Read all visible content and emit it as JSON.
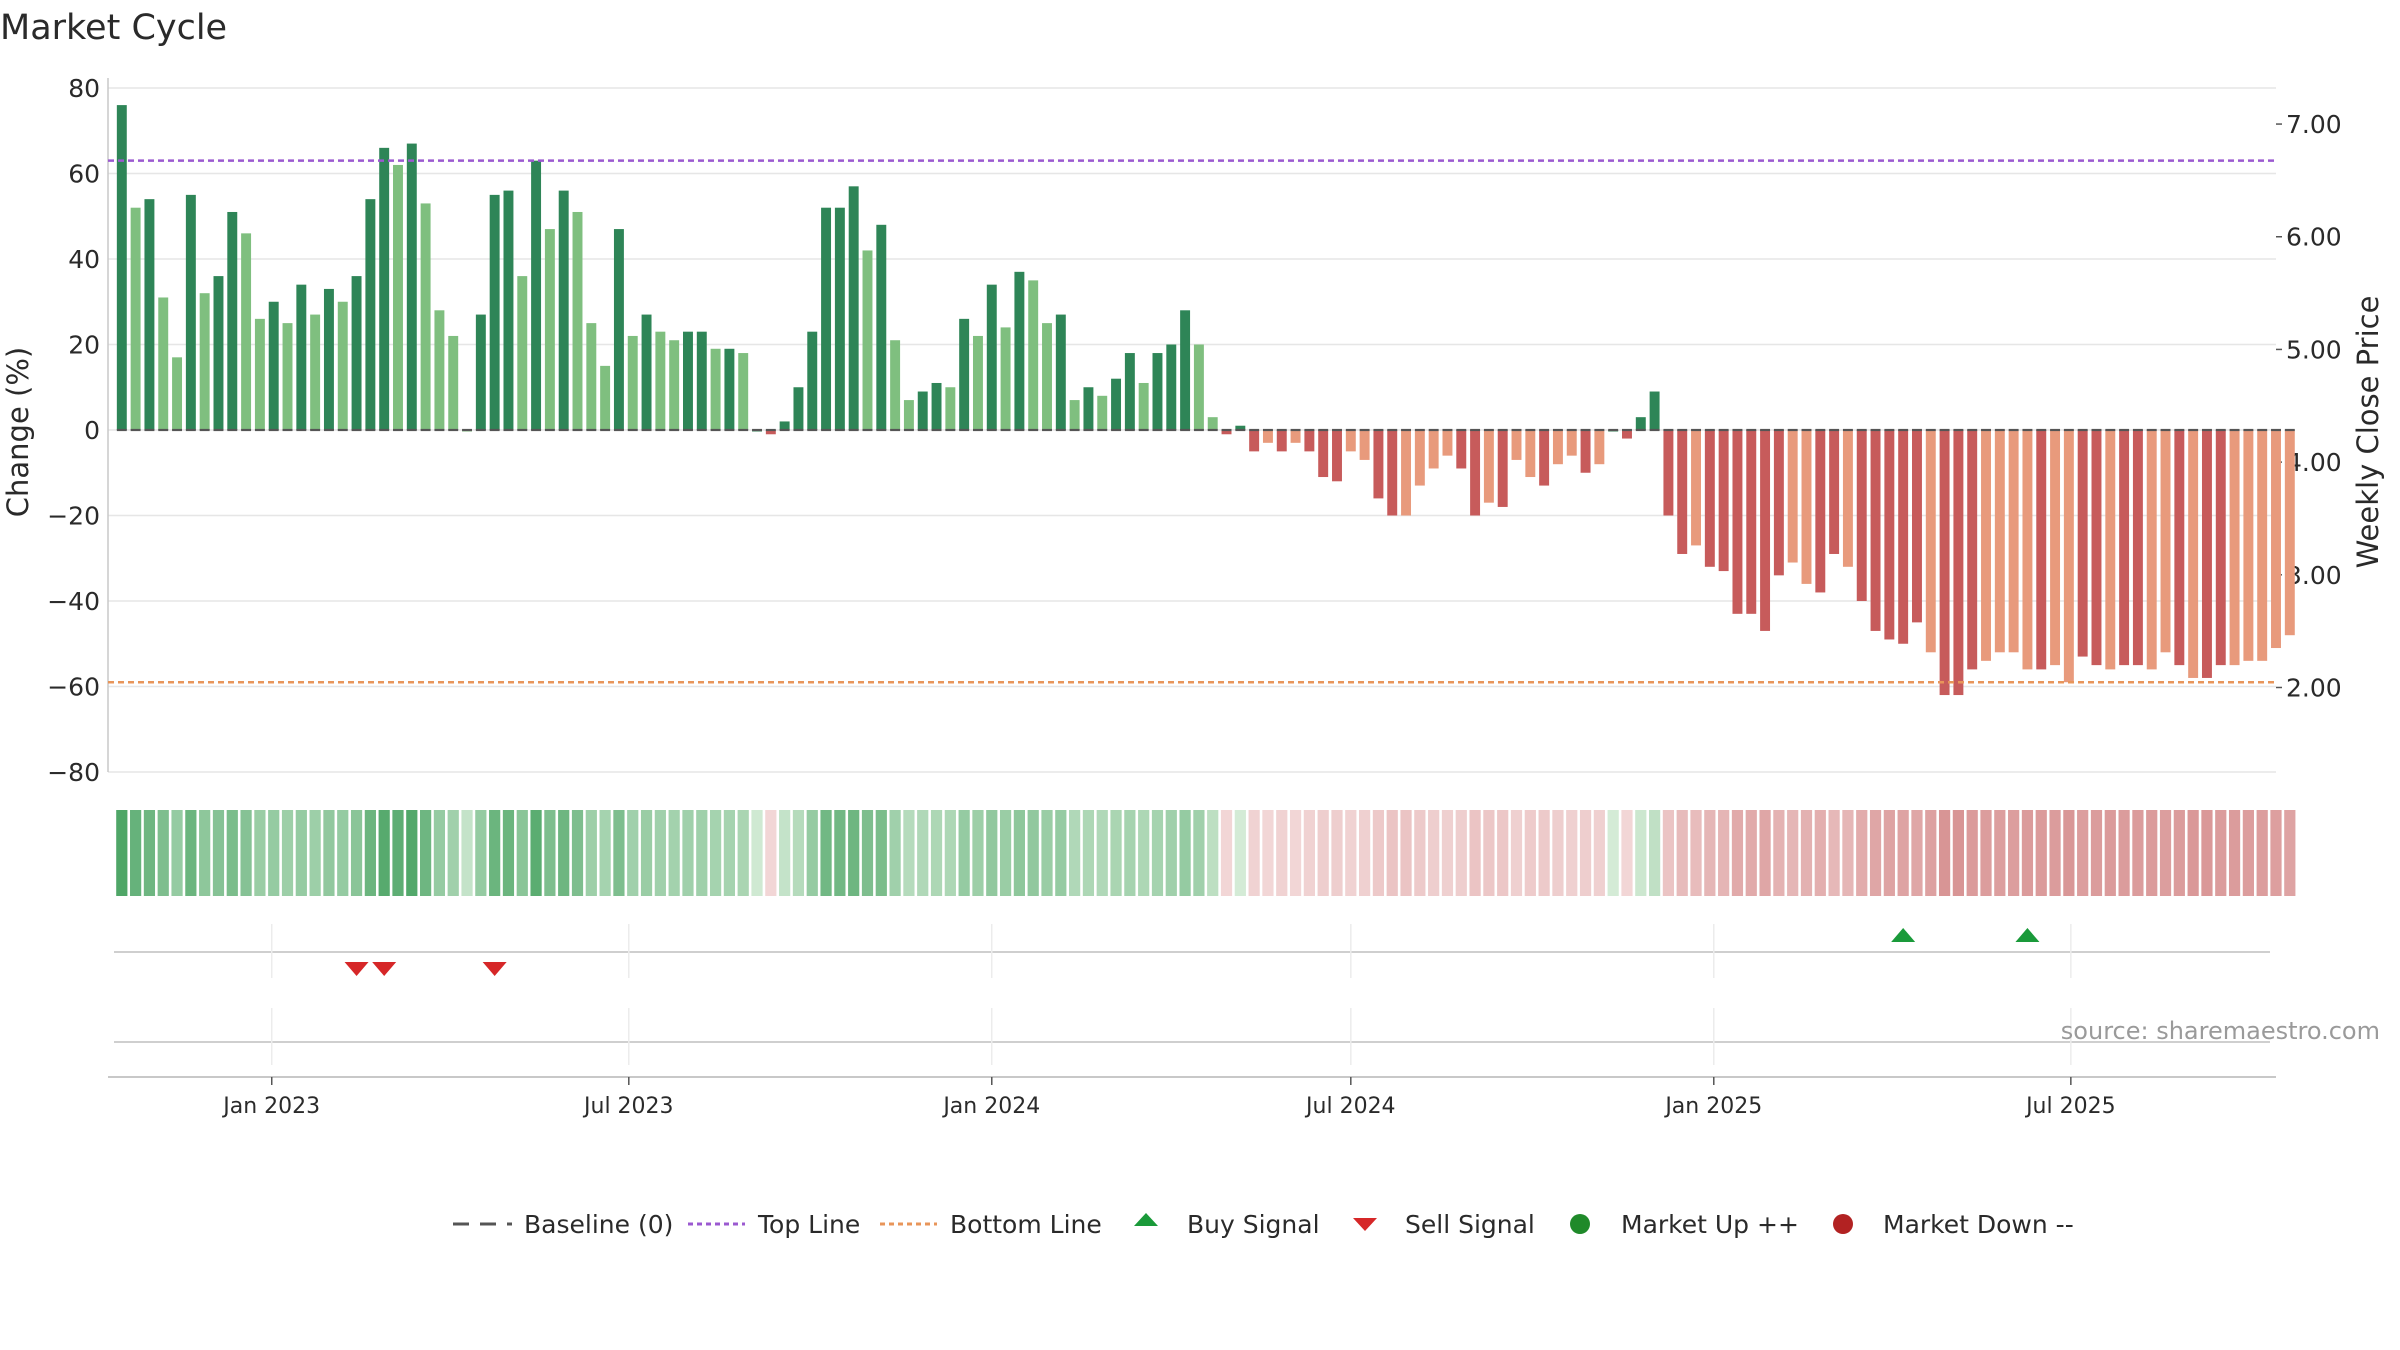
{
  "colors": {
    "bar_up_dark": "#2e8557",
    "bar_up_light": "#7fbf7f",
    "bar_down_dark": "#c75b5b",
    "bar_down_light": "#e89a7c",
    "top_line": "#9b59d0",
    "bottom_line": "#e8955a",
    "baseline": "#555555",
    "buy": "#1a9a3a",
    "sell": "#d62728",
    "market_up": "#1f8a2a",
    "market_down": "#b22222",
    "grid": "#e6e6e6"
  },
  "chart_data": {
    "type": "bar",
    "title": "Market Cycle",
    "ylabel": "Change (%)",
    "y2label": "Weekly Close Price",
    "ylim": [
      -80,
      80
    ],
    "y2lim": [
      1.25,
      7.32
    ],
    "yticks": [
      "80",
      "60",
      "40",
      "20",
      "0",
      "−20",
      "−40",
      "−60",
      "−80"
    ],
    "y2ticks": [
      "7.00",
      "6.00",
      "5.00",
      "4.00",
      "3.00",
      "2.00"
    ],
    "xlim": [
      "2022-10-10",
      "2025-10-13"
    ],
    "xticks": [
      "Jan 2023",
      "Jul 2023",
      "Jan 2024",
      "Jul 2024",
      "Jan 2025",
      "Jul 2025"
    ],
    "xtick_dates": [
      "2023-01-01",
      "2023-07-01",
      "2024-01-01",
      "2024-07-01",
      "2025-01-01",
      "2025-07-01"
    ],
    "first_week": "2022-10-17",
    "week_days": 7,
    "top_line": 63,
    "bottom_line": -59,
    "grid": true,
    "source": "source: sharemaestro.com",
    "changes": [
      76,
      52,
      54,
      31,
      17,
      55,
      32,
      36,
      51,
      46,
      26,
      30,
      25,
      34,
      27,
      33,
      30,
      36,
      54,
      66,
      62,
      67,
      53,
      28,
      22,
      0,
      27,
      55,
      56,
      36,
      63,
      47,
      56,
      51,
      25,
      15,
      47,
      22,
      27,
      23,
      21,
      23,
      23,
      19,
      19,
      18,
      0,
      -1,
      2,
      10,
      23,
      52,
      52,
      57,
      42,
      48,
      21,
      7,
      9,
      11,
      10,
      26,
      22,
      34,
      24,
      37,
      35,
      25,
      27,
      7,
      10,
      8,
      12,
      18,
      11,
      18,
      20,
      28,
      20,
      3,
      -1,
      1,
      -5,
      -3,
      -5,
      -3,
      -5,
      -11,
      -12,
      -5,
      -7,
      -16,
      -20,
      -20,
      -13,
      -9,
      -6,
      -9,
      -20,
      -17,
      -18,
      -7,
      -11,
      -13,
      -8,
      -6,
      -10,
      -8,
      0,
      -2,
      3,
      9,
      -20,
      -29,
      -27,
      -32,
      -33,
      -43,
      -43,
      -47,
      -34,
      -31,
      -36,
      -38,
      -29,
      -32,
      -40,
      -47,
      -49,
      -50,
      -45,
      -52,
      -62,
      -62,
      -56,
      -54,
      -52,
      -52,
      -56,
      -56,
      -55,
      -59,
      -53,
      -55,
      -56,
      -55,
      -55,
      -56,
      -52,
      -55,
      -58,
      -58,
      -55,
      -55,
      -54,
      -54,
      -51,
      -48
    ],
    "shades": [
      "d",
      "l",
      "d",
      "l",
      "l",
      "d",
      "l",
      "d",
      "d",
      "l",
      "l",
      "d",
      "l",
      "d",
      "l",
      "d",
      "l",
      "d",
      "d",
      "d",
      "l",
      "d",
      "l",
      "l",
      "l",
      "l",
      "d",
      "d",
      "d",
      "l",
      "d",
      "l",
      "d",
      "l",
      "l",
      "l",
      "d",
      "l",
      "d",
      "l",
      "l",
      "d",
      "d",
      "l",
      "d",
      "l",
      "d",
      "d",
      "d",
      "d",
      "d",
      "d",
      "d",
      "d",
      "l",
      "d",
      "l",
      "l",
      "d",
      "d",
      "l",
      "d",
      "l",
      "d",
      "l",
      "d",
      "l",
      "l",
      "d",
      "l",
      "d",
      "l",
      "d",
      "d",
      "l",
      "d",
      "d",
      "d",
      "l",
      "l",
      "d",
      "d",
      "d",
      "l",
      "d",
      "l",
      "d",
      "d",
      "d",
      "l",
      "l",
      "d",
      "d",
      "l",
      "l",
      "l",
      "l",
      "d",
      "d",
      "l",
      "d",
      "l",
      "l",
      "d",
      "l",
      "l",
      "d",
      "l",
      "d",
      "d",
      "d",
      "d",
      "d",
      "d",
      "l",
      "d",
      "d",
      "d",
      "d",
      "d",
      "d",
      "l",
      "l",
      "d",
      "d",
      "l",
      "d",
      "d",
      "d",
      "d",
      "d",
      "l",
      "d",
      "d",
      "d",
      "l",
      "l",
      "l",
      "l",
      "d",
      "l",
      "l",
      "d",
      "d",
      "l",
      "d",
      "d",
      "l",
      "l",
      "d",
      "l",
      "d",
      "d",
      "l",
      "l",
      "l",
      "l",
      "l"
    ],
    "strip_levels": [
      0.9,
      0.75,
      0.7,
      0.6,
      0.45,
      0.72,
      0.5,
      0.55,
      0.62,
      0.55,
      0.42,
      0.45,
      0.4,
      0.45,
      0.4,
      0.48,
      0.45,
      0.52,
      0.72,
      0.85,
      0.8,
      0.88,
      0.7,
      0.45,
      0.38,
      0.15,
      0.45,
      0.72,
      0.72,
      0.52,
      0.82,
      0.6,
      0.7,
      0.6,
      0.4,
      0.35,
      0.6,
      0.38,
      0.42,
      0.38,
      0.36,
      0.38,
      0.38,
      0.35,
      0.35,
      0.32,
      0.08,
      0.05,
      0.15,
      0.25,
      0.45,
      0.68,
      0.68,
      0.7,
      0.6,
      0.62,
      0.38,
      0.25,
      0.28,
      0.3,
      0.3,
      0.45,
      0.4,
      0.48,
      0.42,
      0.5,
      0.48,
      0.42,
      0.45,
      0.28,
      0.3,
      0.28,
      0.32,
      0.35,
      0.3,
      0.35,
      0.38,
      0.45,
      0.38,
      0.2,
      0.05,
      0.05,
      0.08,
      0.05,
      0.08,
      0.05,
      0.08,
      0.12,
      0.12,
      0.08,
      0.1,
      0.16,
      0.2,
      0.2,
      0.15,
      0.12,
      0.1,
      0.12,
      0.2,
      0.18,
      0.18,
      0.1,
      0.14,
      0.15,
      0.12,
      0.1,
      0.12,
      0.1,
      0.05,
      0.05,
      0.1,
      0.18,
      0.2,
      0.28,
      0.27,
      0.32,
      0.33,
      0.42,
      0.42,
      0.45,
      0.35,
      0.32,
      0.36,
      0.38,
      0.3,
      0.32,
      0.4,
      0.45,
      0.48,
      0.48,
      0.45,
      0.5,
      0.6,
      0.6,
      0.55,
      0.53,
      0.52,
      0.52,
      0.55,
      0.55,
      0.54,
      0.58,
      0.52,
      0.54,
      0.55,
      0.54,
      0.54,
      0.55,
      0.52,
      0.54,
      0.57,
      0.57,
      0.54,
      0.54,
      0.53,
      0.53,
      0.51,
      0.48
    ],
    "buy_signals": [
      "2025-04-07",
      "2025-06-09"
    ],
    "sell_signals": [
      "2023-02-13",
      "2023-02-27",
      "2023-04-24"
    ]
  },
  "legend": {
    "baseline": "Baseline (0)",
    "top_line": "Top Line",
    "bottom_line": "Bottom Line",
    "buy": "Buy Signal",
    "sell": "Sell Signal",
    "market_up": "Market Up ++",
    "market_down": "Market Down --"
  }
}
